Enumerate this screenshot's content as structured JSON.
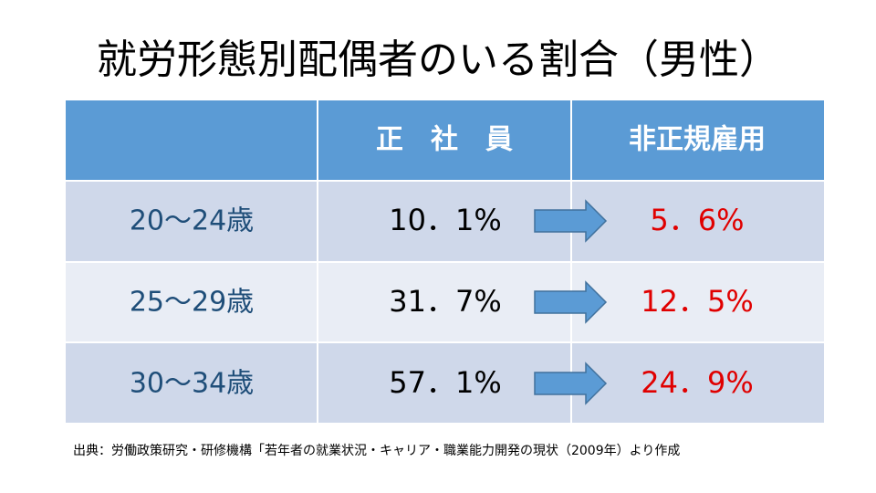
{
  "title": "就労形態別配偶者のいる割合（男性）",
  "table": {
    "header": [
      "正　社　員",
      "非正規雇用"
    ],
    "rows": [
      [
        "20～24歳",
        "10．1%",
        "5．6%"
      ],
      [
        "25～29歳",
        "31．7%",
        "12．5%"
      ],
      [
        "30～34歳",
        "57．1%",
        "24．9%"
      ]
    ]
  },
  "source": "出典：労働政策研究・研修機構「若年者の就業状況・キャリア・職業能力開発の現状（2009年）より作成"
}
